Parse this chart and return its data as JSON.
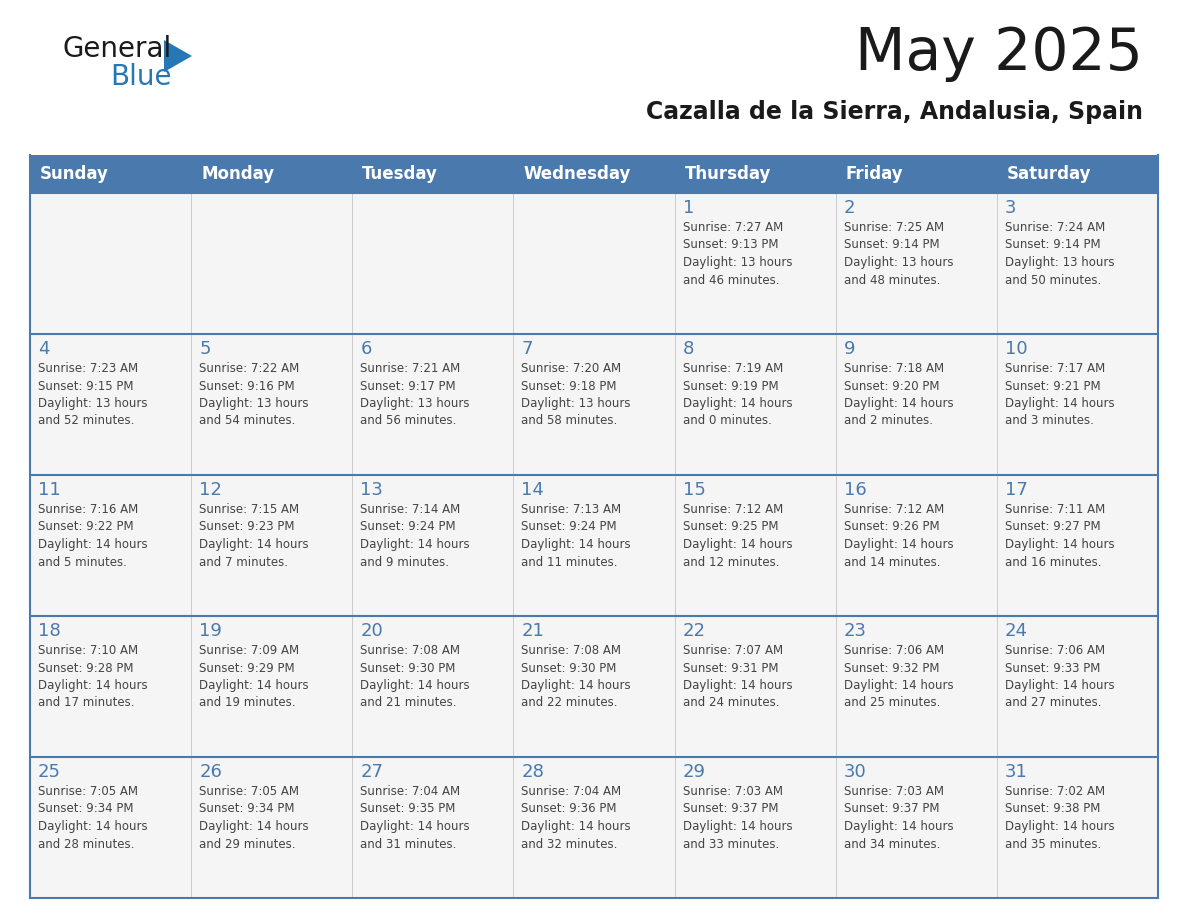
{
  "title": "May 2025",
  "subtitle": "Cazalla de la Sierra, Andalusia, Spain",
  "header_color": "#4a7aad",
  "header_text_color": "#ffffff",
  "cell_bg_color": "#f5f5f5",
  "border_color": "#4a7aad",
  "title_color": "#1a1a1a",
  "subtitle_color": "#1a1a1a",
  "day_number_color": "#4a7aad",
  "cell_text_color": "#444444",
  "logo_black": "#1a1a1a",
  "logo_blue": "#2577b5",
  "days_of_week": [
    "Sunday",
    "Monday",
    "Tuesday",
    "Wednesday",
    "Thursday",
    "Friday",
    "Saturday"
  ],
  "weeks": [
    [
      {
        "day": "",
        "text": ""
      },
      {
        "day": "",
        "text": ""
      },
      {
        "day": "",
        "text": ""
      },
      {
        "day": "",
        "text": ""
      },
      {
        "day": "1",
        "text": "Sunrise: 7:27 AM\nSunset: 9:13 PM\nDaylight: 13 hours\nand 46 minutes."
      },
      {
        "day": "2",
        "text": "Sunrise: 7:25 AM\nSunset: 9:14 PM\nDaylight: 13 hours\nand 48 minutes."
      },
      {
        "day": "3",
        "text": "Sunrise: 7:24 AM\nSunset: 9:14 PM\nDaylight: 13 hours\nand 50 minutes."
      }
    ],
    [
      {
        "day": "4",
        "text": "Sunrise: 7:23 AM\nSunset: 9:15 PM\nDaylight: 13 hours\nand 52 minutes."
      },
      {
        "day": "5",
        "text": "Sunrise: 7:22 AM\nSunset: 9:16 PM\nDaylight: 13 hours\nand 54 minutes."
      },
      {
        "day": "6",
        "text": "Sunrise: 7:21 AM\nSunset: 9:17 PM\nDaylight: 13 hours\nand 56 minutes."
      },
      {
        "day": "7",
        "text": "Sunrise: 7:20 AM\nSunset: 9:18 PM\nDaylight: 13 hours\nand 58 minutes."
      },
      {
        "day": "8",
        "text": "Sunrise: 7:19 AM\nSunset: 9:19 PM\nDaylight: 14 hours\nand 0 minutes."
      },
      {
        "day": "9",
        "text": "Sunrise: 7:18 AM\nSunset: 9:20 PM\nDaylight: 14 hours\nand 2 minutes."
      },
      {
        "day": "10",
        "text": "Sunrise: 7:17 AM\nSunset: 9:21 PM\nDaylight: 14 hours\nand 3 minutes."
      }
    ],
    [
      {
        "day": "11",
        "text": "Sunrise: 7:16 AM\nSunset: 9:22 PM\nDaylight: 14 hours\nand 5 minutes."
      },
      {
        "day": "12",
        "text": "Sunrise: 7:15 AM\nSunset: 9:23 PM\nDaylight: 14 hours\nand 7 minutes."
      },
      {
        "day": "13",
        "text": "Sunrise: 7:14 AM\nSunset: 9:24 PM\nDaylight: 14 hours\nand 9 minutes."
      },
      {
        "day": "14",
        "text": "Sunrise: 7:13 AM\nSunset: 9:24 PM\nDaylight: 14 hours\nand 11 minutes."
      },
      {
        "day": "15",
        "text": "Sunrise: 7:12 AM\nSunset: 9:25 PM\nDaylight: 14 hours\nand 12 minutes."
      },
      {
        "day": "16",
        "text": "Sunrise: 7:12 AM\nSunset: 9:26 PM\nDaylight: 14 hours\nand 14 minutes."
      },
      {
        "day": "17",
        "text": "Sunrise: 7:11 AM\nSunset: 9:27 PM\nDaylight: 14 hours\nand 16 minutes."
      }
    ],
    [
      {
        "day": "18",
        "text": "Sunrise: 7:10 AM\nSunset: 9:28 PM\nDaylight: 14 hours\nand 17 minutes."
      },
      {
        "day": "19",
        "text": "Sunrise: 7:09 AM\nSunset: 9:29 PM\nDaylight: 14 hours\nand 19 minutes."
      },
      {
        "day": "20",
        "text": "Sunrise: 7:08 AM\nSunset: 9:30 PM\nDaylight: 14 hours\nand 21 minutes."
      },
      {
        "day": "21",
        "text": "Sunrise: 7:08 AM\nSunset: 9:30 PM\nDaylight: 14 hours\nand 22 minutes."
      },
      {
        "day": "22",
        "text": "Sunrise: 7:07 AM\nSunset: 9:31 PM\nDaylight: 14 hours\nand 24 minutes."
      },
      {
        "day": "23",
        "text": "Sunrise: 7:06 AM\nSunset: 9:32 PM\nDaylight: 14 hours\nand 25 minutes."
      },
      {
        "day": "24",
        "text": "Sunrise: 7:06 AM\nSunset: 9:33 PM\nDaylight: 14 hours\nand 27 minutes."
      }
    ],
    [
      {
        "day": "25",
        "text": "Sunrise: 7:05 AM\nSunset: 9:34 PM\nDaylight: 14 hours\nand 28 minutes."
      },
      {
        "day": "26",
        "text": "Sunrise: 7:05 AM\nSunset: 9:34 PM\nDaylight: 14 hours\nand 29 minutes."
      },
      {
        "day": "27",
        "text": "Sunrise: 7:04 AM\nSunset: 9:35 PM\nDaylight: 14 hours\nand 31 minutes."
      },
      {
        "day": "28",
        "text": "Sunrise: 7:04 AM\nSunset: 9:36 PM\nDaylight: 14 hours\nand 32 minutes."
      },
      {
        "day": "29",
        "text": "Sunrise: 7:03 AM\nSunset: 9:37 PM\nDaylight: 14 hours\nand 33 minutes."
      },
      {
        "day": "30",
        "text": "Sunrise: 7:03 AM\nSunset: 9:37 PM\nDaylight: 14 hours\nand 34 minutes."
      },
      {
        "day": "31",
        "text": "Sunrise: 7:02 AM\nSunset: 9:38 PM\nDaylight: 14 hours\nand 35 minutes."
      }
    ]
  ]
}
